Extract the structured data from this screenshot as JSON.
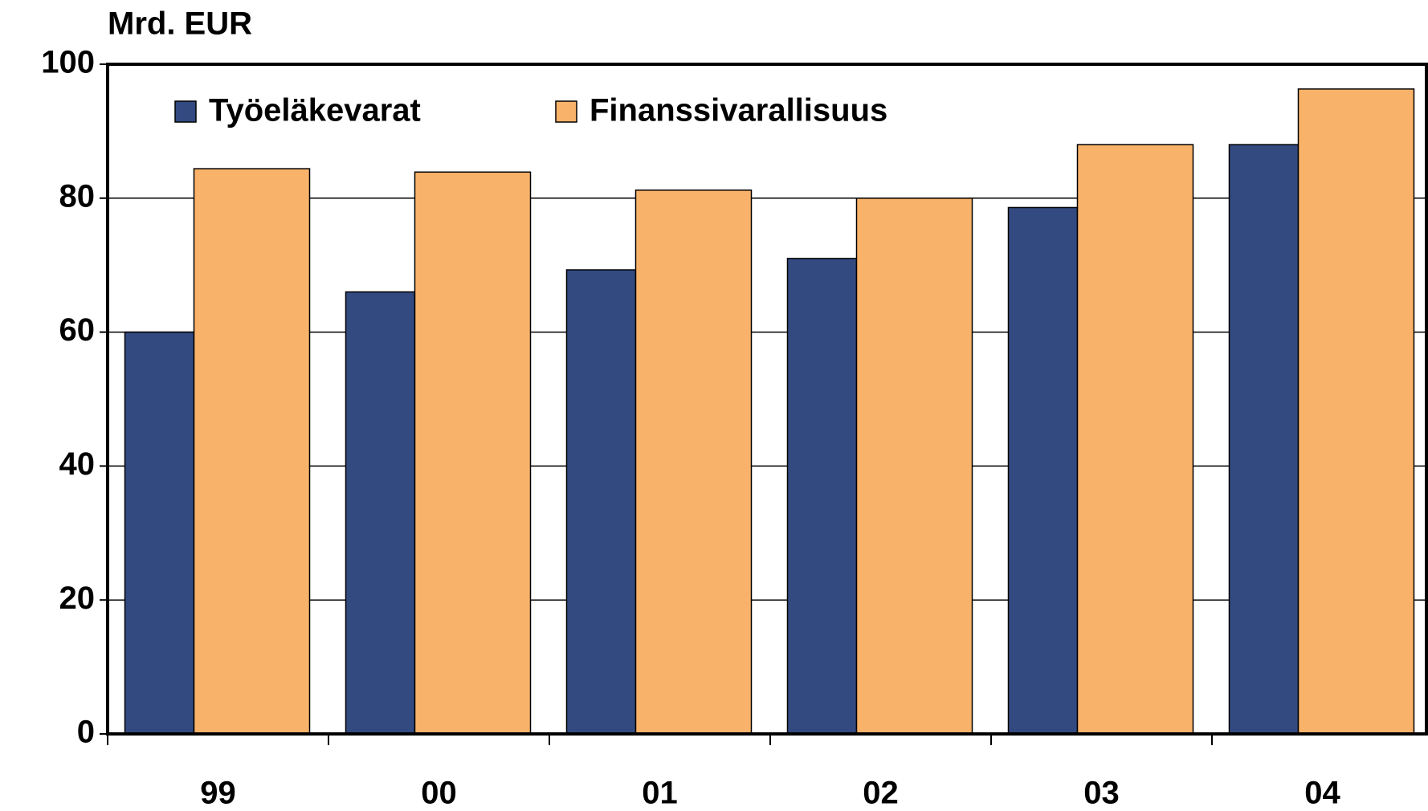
{
  "chart_data": {
    "type": "bar",
    "title": "Mrd. EUR",
    "categories": [
      "99",
      "00",
      "01",
      "02",
      "03",
      "04"
    ],
    "series": [
      {
        "name": "Työeläkevarat",
        "color": "#334a80",
        "values": [
          60,
          66,
          69.3,
          71,
          78.6,
          88
        ]
      },
      {
        "name": "Finanssivarallisuus",
        "color": "#f9b26a",
        "values": [
          84.4,
          83.9,
          81.2,
          80,
          88,
          96.3
        ]
      }
    ],
    "ylim": [
      0,
      100
    ],
    "yticks": [
      0,
      20,
      40,
      60,
      80,
      100
    ],
    "grid": true,
    "legend": "top"
  }
}
